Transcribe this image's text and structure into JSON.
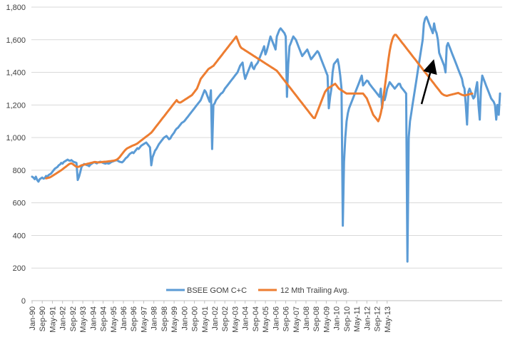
{
  "chart_data": {
    "type": "line",
    "title": "",
    "xlabel": "",
    "ylabel": "",
    "ylim": [
      0,
      1800
    ],
    "y_ticks": [
      "0",
      "200",
      "400",
      "600",
      "800",
      "1,000",
      "1,200",
      "1,400",
      "1,600",
      "1,800"
    ],
    "x_ticks": [
      "Jan-90",
      "Sep-90",
      "May-91",
      "Jan-92",
      "Sep-92",
      "May-93",
      "Jan-94",
      "Sep-94",
      "May-95",
      "Jan-96",
      "Sep-96",
      "May-97",
      "Jan-98",
      "Sep-98",
      "May-99",
      "Jan-00",
      "Sep-00",
      "May-01",
      "Jan-02",
      "Sep-02",
      "May-03",
      "Jan-04",
      "Sep-04",
      "May-05",
      "Jan-06",
      "Sep-06",
      "May-07",
      "Jan-08",
      "Sep-08",
      "May-09",
      "Jan-10",
      "Sep-10",
      "May-11",
      "Jan-12",
      "Sep-12",
      "May-13"
    ],
    "grid": "horizontal",
    "legend_position": "bottom",
    "x_start_month": "Jan-90",
    "series": [
      {
        "name": "BSEE GOM C+C",
        "color": "#5b9bd5",
        "values": [
          760,
          755,
          745,
          760,
          740,
          730,
          745,
          750,
          755,
          748,
          752,
          765,
          760,
          770,
          775,
          780,
          790,
          800,
          810,
          815,
          820,
          830,
          835,
          845,
          840,
          850,
          855,
          860,
          865,
          860,
          858,
          862,
          855,
          850,
          848,
          845,
          740,
          760,
          790,
          820,
          830,
          838,
          835,
          832,
          830,
          825,
          835,
          840,
          845,
          850,
          846,
          842,
          848,
          850,
          852,
          848,
          845,
          842,
          840,
          846,
          840,
          842,
          848,
          852,
          855,
          858,
          860,
          862,
          856,
          852,
          850,
          848,
          855,
          865,
          875,
          880,
          890,
          900,
          905,
          910,
          905,
          915,
          925,
          935,
          930,
          940,
          950,
          955,
          960,
          965,
          970,
          960,
          950,
          940,
          830,
          880,
          900,
          920,
          930,
          945,
          960,
          970,
          980,
          990,
          1000,
          1005,
          1010,
          1000,
          990,
          995,
          1010,
          1020,
          1030,
          1045,
          1055,
          1060,
          1070,
          1080,
          1090,
          1095,
          1100,
          1110,
          1120,
          1130,
          1140,
          1150,
          1160,
          1170,
          1180,
          1190,
          1200,
          1210,
          1220,
          1230,
          1250,
          1270,
          1290,
          1280,
          1260,
          1240,
          1220,
          1290,
          930,
          1200,
          1210,
          1230,
          1240,
          1250,
          1260,
          1270,
          1275,
          1285,
          1300,
          1310,
          1320,
          1330,
          1340,
          1350,
          1360,
          1370,
          1380,
          1390,
          1400,
          1420,
          1440,
          1450,
          1460,
          1400,
          1360,
          1380,
          1400,
          1420,
          1440,
          1460,
          1430,
          1420,
          1440,
          1450,
          1460,
          1480,
          1500,
          1520,
          1540,
          1560,
          1510,
          1530,
          1560,
          1590,
          1620,
          1600,
          1580,
          1560,
          1540,
          1620,
          1640,
          1660,
          1670,
          1660,
          1650,
          1640,
          1620,
          1250,
          1450,
          1560,
          1580,
          1600,
          1620,
          1610,
          1600,
          1580,
          1560,
          1540,
          1520,
          1500,
          1510,
          1520,
          1530,
          1540,
          1520,
          1500,
          1480,
          1490,
          1500,
          1510,
          1520,
          1530,
          1520,
          1500,
          1480,
          1460,
          1440,
          1420,
          1400,
          1380,
          1180,
          1250,
          1300,
          1400,
          1450,
          1460,
          1470,
          1480,
          1440,
          1380,
          1300,
          460,
          850,
          1000,
          1100,
          1150,
          1180,
          1200,
          1220,
          1240,
          1260,
          1280,
          1300,
          1320,
          1340,
          1360,
          1380,
          1320,
          1330,
          1340,
          1350,
          1345,
          1330,
          1320,
          1310,
          1300,
          1290,
          1280,
          1270,
          1260,
          1250,
          1300,
          1180,
          1250,
          1230,
          1260,
          1300,
          1320,
          1340,
          1330,
          1320,
          1310,
          1300,
          1310,
          1320,
          1330,
          1330,
          1310,
          1300,
          1290,
          1280,
          1270,
          240,
          1000,
          1100,
          1150,
          1200,
          1250,
          1300,
          1350,
          1400,
          1450,
          1500,
          1550,
          1600,
          1700,
          1730,
          1740,
          1720,
          1700,
          1680,
          1660,
          1640,
          1700,
          1660,
          1640,
          1600,
          1520,
          1500,
          1480,
          1460,
          1440,
          1400,
          1560,
          1580,
          1560,
          1540,
          1520,
          1500,
          1480,
          1460,
          1440,
          1420,
          1400,
          1380,
          1360,
          1320,
          1300,
          1200,
          1080,
          1280,
          1300,
          1280,
          1260,
          1240,
          1250,
          1300,
          1340,
          1200,
          1110,
          1300,
          1380,
          1360,
          1340,
          1320,
          1300,
          1280,
          1260,
          1240,
          1230,
          1220,
          1200,
          1110,
          1200,
          1140,
          1270
        ]
      },
      {
        "name": "12 Mth Trailing Avg.",
        "color": "#ed7d31",
        "values": [
          null,
          null,
          null,
          null,
          null,
          null,
          null,
          null,
          null,
          null,
          null,
          750,
          752,
          754,
          756,
          760,
          765,
          770,
          775,
          780,
          785,
          790,
          795,
          800,
          806,
          812,
          818,
          824,
          830,
          836,
          840,
          842,
          838,
          832,
          826,
          822,
          820,
          822,
          826,
          830,
          832,
          834,
          836,
          838,
          840,
          842,
          844,
          846,
          848,
          850,
          850,
          849,
          848,
          848,
          849,
          850,
          851,
          852,
          852,
          853,
          854,
          855,
          856,
          857,
          858,
          860,
          862,
          866,
          872,
          880,
          890,
          900,
          910,
          920,
          928,
          934,
          938,
          942,
          946,
          950,
          953,
          956,
          960,
          964,
          970,
          976,
          982,
          988,
          994,
          1000,
          1006,
          1012,
          1018,
          1024,
          1030,
          1040,
          1050,
          1060,
          1070,
          1080,
          1090,
          1100,
          1110,
          1120,
          1130,
          1140,
          1150,
          1160,
          1170,
          1180,
          1190,
          1200,
          1210,
          1220,
          1230,
          1220,
          1215,
          1215,
          1220,
          1225,
          1230,
          1235,
          1240,
          1245,
          1250,
          1255,
          1260,
          1270,
          1280,
          1290,
          1300,
          1320,
          1340,
          1360,
          1370,
          1380,
          1390,
          1400,
          1410,
          1420,
          1425,
          1430,
          1435,
          1440,
          1450,
          1460,
          1470,
          1480,
          1490,
          1500,
          1510,
          1520,
          1530,
          1540,
          1550,
          1560,
          1570,
          1580,
          1590,
          1600,
          1610,
          1620,
          1600,
          1580,
          1560,
          1550,
          1545,
          1540,
          1535,
          1530,
          1525,
          1520,
          1515,
          1510,
          1505,
          1500,
          1495,
          1490,
          1485,
          1480,
          1475,
          1470,
          1465,
          1460,
          1455,
          1450,
          1445,
          1440,
          1435,
          1430,
          1425,
          1420,
          1415,
          1410,
          1400,
          1390,
          1380,
          1370,
          1360,
          1350,
          1340,
          1330,
          1320,
          1310,
          1300,
          1290,
          1280,
          1270,
          1260,
          1250,
          1240,
          1230,
          1220,
          1210,
          1200,
          1190,
          1180,
          1170,
          1160,
          1150,
          1140,
          1130,
          1120,
          1120,
          1140,
          1160,
          1180,
          1200,
          1220,
          1240,
          1260,
          1280,
          1290,
          1300,
          1305,
          1310,
          1315,
          1320,
          1325,
          1330,
          1320,
          1310,
          1300,
          1295,
          1290,
          1285,
          1280,
          1275,
          1270,
          1270,
          1270,
          1270,
          1270,
          1270,
          1270,
          1270,
          1270,
          1270,
          1270,
          1270,
          1270,
          1270,
          1260,
          1250,
          1240,
          1220,
          1200,
          1180,
          1160,
          1140,
          1130,
          1120,
          1110,
          1100,
          1120,
          1150,
          1190,
          1240,
          1300,
          1360,
          1420,
          1480,
          1530,
          1570,
          1600,
          1620,
          1630,
          1630,
          1620,
          1610,
          1600,
          1590,
          1580,
          1570,
          1560,
          1550,
          1540,
          1530,
          1520,
          1510,
          1500,
          1490,
          1480,
          1470,
          1460,
          1450,
          1440,
          1430,
          1420,
          1410,
          1400,
          1390,
          1380,
          1370,
          1360,
          1350,
          1340,
          1330,
          1320,
          1310,
          1300,
          1290,
          1280,
          1270,
          1265,
          1260,
          1258,
          1256,
          1258,
          1260,
          1262,
          1264,
          1266,
          1268,
          1270,
          1272,
          1274,
          1270,
          1266,
          1262,
          1260,
          1258,
          1260,
          1262,
          1264,
          1266,
          1268,
          1270
        ]
      }
    ],
    "annotation": {
      "type": "arrow",
      "color": "#000000"
    }
  }
}
